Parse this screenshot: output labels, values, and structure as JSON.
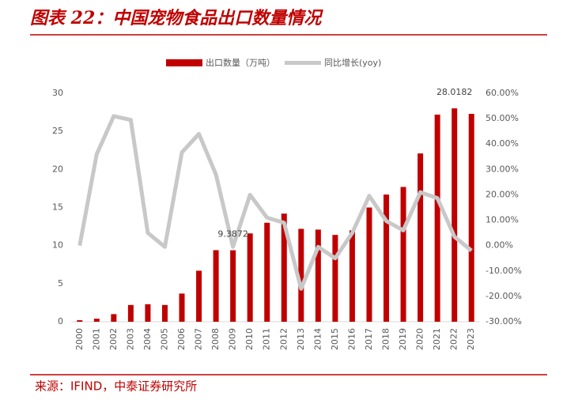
{
  "chart_data": {
    "type": "bar-line",
    "title": "图表 22：中国宠物食品出口数量情况",
    "source": "来源：IFIND，中泰证券研究所",
    "categories": [
      "2000",
      "2001",
      "2002",
      "2003",
      "2004",
      "2005",
      "2006",
      "2007",
      "2008",
      "2009",
      "2010",
      "2011",
      "2012",
      "2013",
      "2014",
      "2015",
      "2016",
      "2017",
      "2018",
      "2019",
      "2020",
      "2021",
      "2022",
      "2023"
    ],
    "series": [
      {
        "name": "出口数量（万吨）",
        "type": "bar",
        "color": "#c00000",
        "values": [
          0.2,
          0.4,
          1.0,
          2.2,
          2.3,
          2.2,
          3.7,
          6.7,
          9.4,
          9.3872,
          11.6,
          13.0,
          14.2,
          12.2,
          12.1,
          11.4,
          12.0,
          15.0,
          16.7,
          17.7,
          22.1,
          27.2,
          28.0182,
          27.3
        ],
        "value_labels": [
          null,
          null,
          null,
          null,
          null,
          null,
          null,
          null,
          null,
          "9.3872",
          null,
          null,
          null,
          null,
          null,
          null,
          null,
          null,
          null,
          null,
          null,
          null,
          "28.0182",
          null
        ]
      },
      {
        "name": "同比增长(yoy)",
        "type": "line",
        "axis": "y2",
        "color": "#c8c8c8",
        "values": [
          0,
          36,
          51,
          49.5,
          5,
          -0.5,
          36.7,
          44,
          28,
          -0.5,
          20,
          11,
          9,
          -17,
          -0.5,
          -5,
          5,
          19.6,
          9.7,
          6,
          21,
          18.7,
          3.5,
          -2
        ]
      }
    ],
    "ylim": [
      0,
      30
    ],
    "yticks": [
      0,
      5,
      10,
      15,
      20,
      25,
      30
    ],
    "y2lim": [
      -30,
      60
    ],
    "y2ticks": [
      {
        "value": -30,
        "label": "-30.00%"
      },
      {
        "value": -20,
        "label": "-20.00%"
      },
      {
        "value": -10,
        "label": "-10.00%"
      },
      {
        "value": 0,
        "label": "0.00%"
      },
      {
        "value": 10,
        "label": "10.00%"
      },
      {
        "value": 20,
        "label": "20.00%"
      },
      {
        "value": 30,
        "label": "30.00%"
      },
      {
        "value": 40,
        "label": "40.00%"
      },
      {
        "value": 50,
        "label": "50.00%"
      },
      {
        "value": 60,
        "label": "60.00%"
      }
    ]
  }
}
